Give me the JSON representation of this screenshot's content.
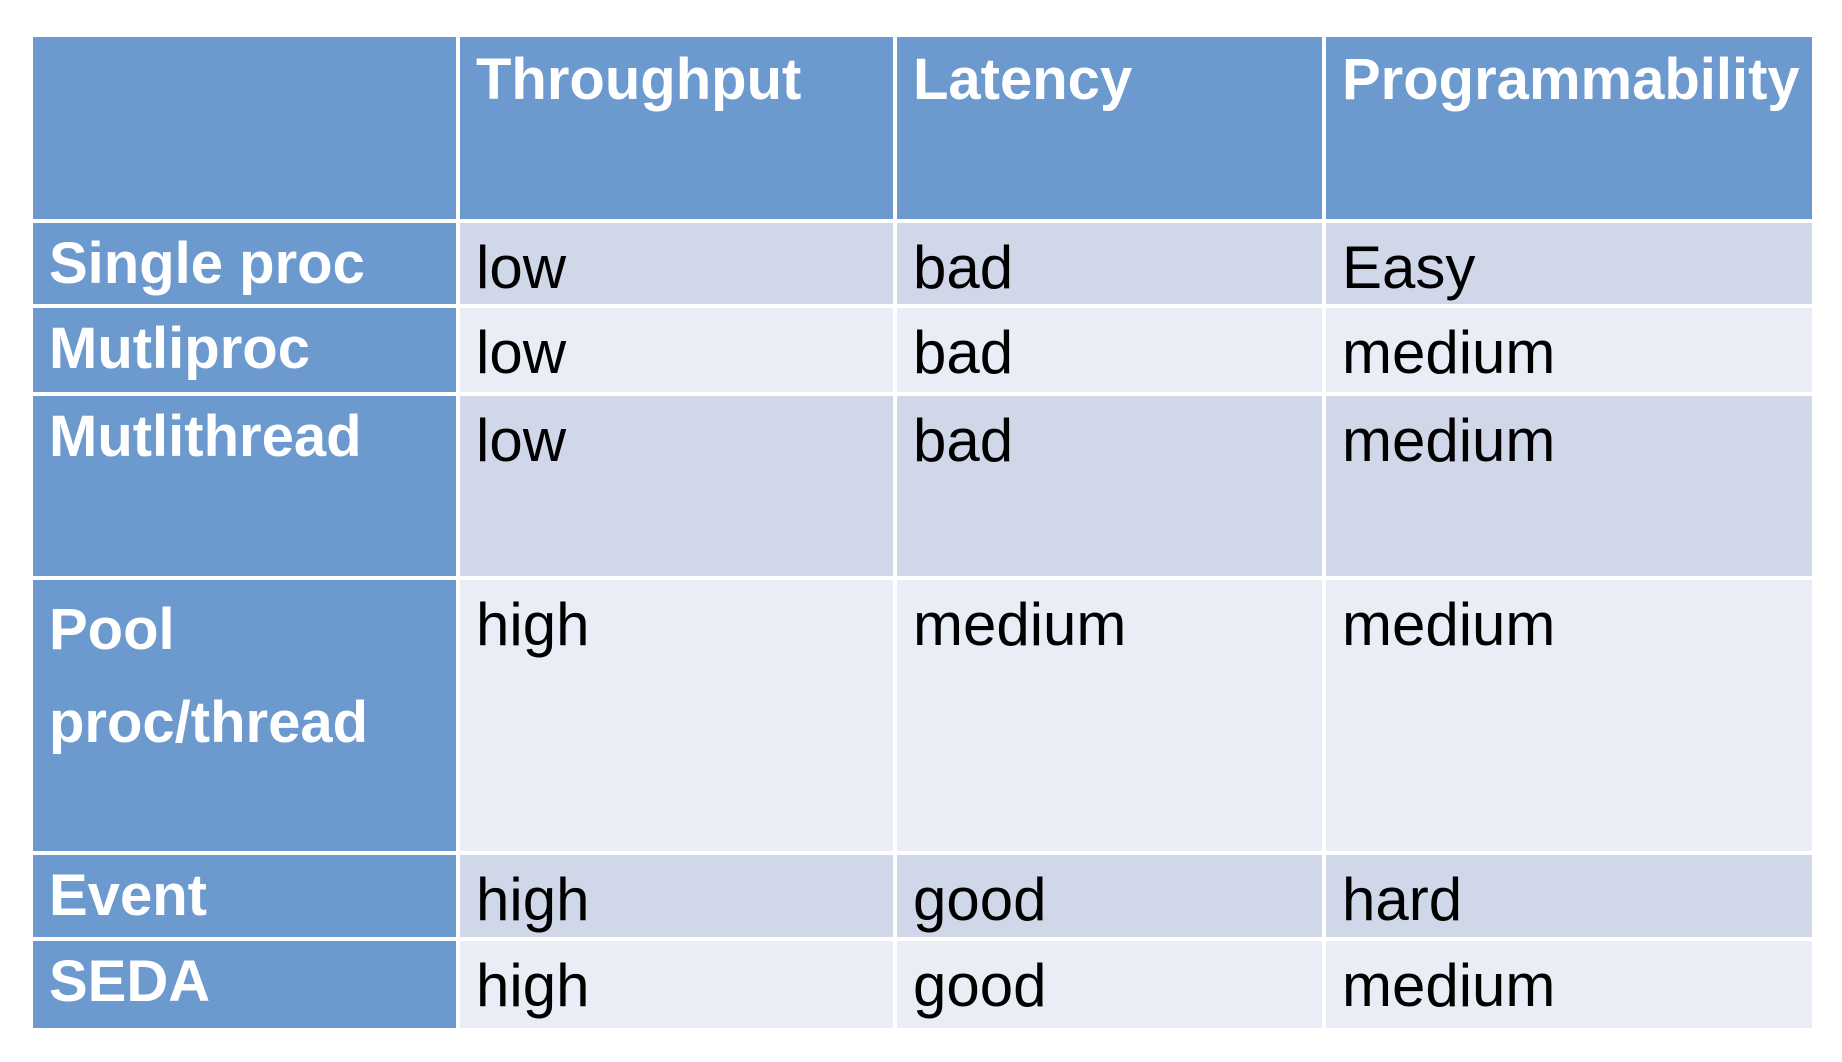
{
  "colors": {
    "table_header_bg": "#6C9ACE",
    "band_dark": "#CFD7E8",
    "band_light": "#E9EDF5",
    "header_text": "#FFFFFF",
    "data_text": "#000000",
    "gridline": "#FFFFFF",
    "page_bg": "#FFFFFF"
  },
  "table": {
    "columns": [
      "",
      "Throughput",
      "Latency",
      "Programmability"
    ],
    "rows": [
      {
        "label": "Single proc",
        "values": [
          "low",
          "bad",
          "Easy"
        ]
      },
      {
        "label": "Mutliproc",
        "values": [
          "low",
          "bad",
          "medium"
        ]
      },
      {
        "label": "Mutlithread",
        "values": [
          "low",
          "bad",
          "medium"
        ]
      },
      {
        "label": "Pool proc/thread",
        "values": [
          "high",
          "medium",
          "medium"
        ]
      },
      {
        "label": "Event",
        "values": [
          "high",
          "good",
          "hard"
        ]
      },
      {
        "label": "SEDA",
        "values": [
          "high",
          "good",
          "medium"
        ]
      }
    ]
  }
}
